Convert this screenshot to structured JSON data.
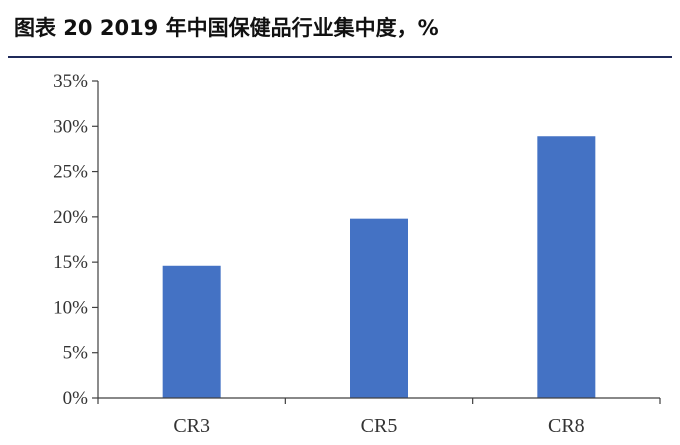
{
  "title": "图表 20 2019 年中国保健品行业集中度，%",
  "chart_data": {
    "type": "bar",
    "title": "图表 20 2019 年中国保健品行业集中度，%",
    "categories": [
      "CR3",
      "CR5",
      "CR8"
    ],
    "values": [
      14.6,
      19.8,
      28.9
    ],
    "ylim": [
      0,
      35
    ],
    "yticks": [
      0,
      5,
      10,
      15,
      20,
      25,
      30,
      35
    ],
    "ytick_labels": [
      "0%",
      "5%",
      "10%",
      "15%",
      "20%",
      "25%",
      "30%",
      "35%"
    ],
    "bar_color": "#4472C4",
    "axis_color": "#404040",
    "grid": false,
    "legend": "none"
  }
}
